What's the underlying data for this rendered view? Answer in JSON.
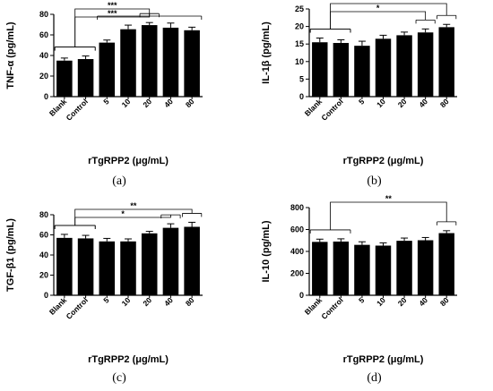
{
  "chart_data": [
    {
      "type": "bar",
      "panel_label": "(a)",
      "ylabel": "TNF-α (pg/mL)",
      "xlabel": "rTgRPP2 (μg/mL)",
      "categories": [
        "Blank",
        "Control",
        "5",
        "10",
        "20",
        "40",
        "80"
      ],
      "values": [
        35,
        36.5,
        52.5,
        65.5,
        69.5,
        67,
        64.5
      ],
      "errors": [
        2.5,
        3,
        2.5,
        4,
        2.5,
        4.5,
        3
      ],
      "ylim": [
        0,
        80
      ],
      "yticks": [
        0,
        20,
        40,
        60,
        80
      ],
      "significance": [
        {
          "label": "***",
          "from": [
            0,
            1
          ],
          "to": [
            2,
            6
          ]
        },
        {
          "label": "***",
          "from": [
            0,
            1
          ],
          "to": [
            4,
            4
          ]
        }
      ]
    },
    {
      "type": "bar",
      "panel_label": "(b)",
      "ylabel": "IL-1β (pg/mL)",
      "xlabel": "rTgRPP2 (μg/mL)",
      "categories": [
        "Blank",
        "Control",
        "5",
        "10",
        "20",
        "40",
        "80"
      ],
      "values": [
        15.5,
        15.3,
        14.5,
        16.5,
        17.5,
        18.3,
        19.8
      ],
      "errors": [
        1.2,
        0.9,
        1.3,
        1.0,
        0.9,
        1.0,
        0.8
      ],
      "ylim": [
        0,
        25
      ],
      "yticks": [
        0,
        5,
        10,
        15,
        20,
        25
      ],
      "significance": [
        {
          "label": "***",
          "from": [
            0,
            1
          ],
          "to": [
            6,
            6
          ]
        },
        {
          "label": "*",
          "from": [
            0,
            1
          ],
          "to": [
            5,
            5
          ]
        }
      ]
    },
    {
      "type": "bar",
      "panel_label": "(c)",
      "ylabel": "TGF-β1 (pg/mL)",
      "xlabel": "rTgRPP2 (μg/mL)",
      "categories": [
        "Blank",
        "Control",
        "5",
        "10",
        "20",
        "40",
        "80"
      ],
      "values": [
        57,
        56.5,
        53.5,
        53.5,
        61.5,
        67,
        68
      ],
      "errors": [
        3.5,
        3,
        3,
        2.5,
        2,
        4,
        4.5
      ],
      "ylim": [
        0,
        80
      ],
      "yticks": [
        0,
        20,
        40,
        60,
        80
      ],
      "significance": [
        {
          "label": "**",
          "from": [
            0,
            1
          ],
          "to": [
            6,
            6
          ]
        },
        {
          "label": "*",
          "from": [
            0,
            1
          ],
          "to": [
            5,
            5
          ]
        }
      ]
    },
    {
      "type": "bar",
      "panel_label": "(d)",
      "ylabel": "IL-10 (pg/mL)",
      "xlabel": "rTgRPP2 (μg/mL)",
      "categories": [
        "Blank",
        "Control",
        "5",
        "10",
        "20",
        "40",
        "80"
      ],
      "values": [
        487,
        490,
        460,
        453,
        497,
        502,
        567
      ],
      "errors": [
        25,
        25,
        28,
        25,
        25,
        25,
        22
      ],
      "ylim": [
        0,
        800
      ],
      "yticks": [
        0,
        200,
        400,
        600,
        800
      ],
      "significance": [
        {
          "label": "**",
          "from": [
            0,
            1
          ],
          "to": [
            6,
            6
          ]
        }
      ]
    }
  ]
}
